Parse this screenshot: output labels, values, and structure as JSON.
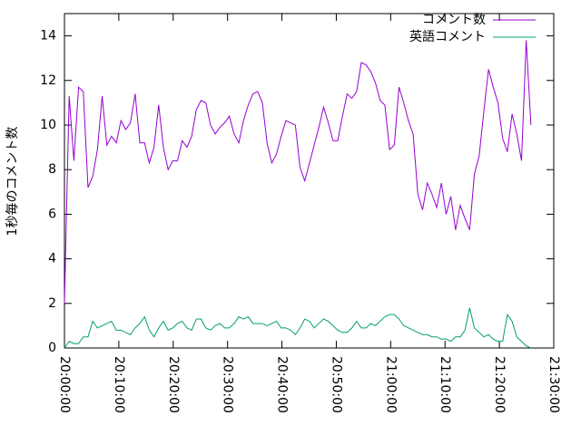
{
  "chart_data": {
    "type": "line",
    "y_label": "1秒毎のコメント数",
    "x": [
      "20:00:00",
      "20:00:52",
      "20:01:44",
      "20:02:36",
      "20:03:28",
      "20:04:20",
      "20:05:12",
      "20:06:04",
      "20:06:56",
      "20:07:48",
      "20:08:40",
      "20:09:32",
      "20:10:24",
      "20:11:16",
      "20:12:08",
      "20:13:00",
      "20:13:52",
      "20:14:44",
      "20:15:36",
      "20:16:28",
      "20:17:20",
      "20:18:12",
      "20:19:04",
      "20:19:56",
      "20:20:48",
      "20:21:40",
      "20:22:32",
      "20:23:24",
      "20:24:16",
      "20:25:08",
      "20:26:00",
      "20:26:52",
      "20:27:44",
      "20:28:36",
      "20:29:28",
      "20:30:20",
      "20:31:12",
      "20:32:04",
      "20:32:56",
      "20:33:48",
      "20:34:40",
      "20:35:32",
      "20:36:24",
      "20:37:16",
      "20:38:08",
      "20:39:00",
      "20:39:52",
      "20:40:44",
      "20:41:36",
      "20:42:28",
      "20:43:20",
      "20:44:12",
      "20:45:04",
      "20:45:56",
      "20:46:48",
      "20:47:40",
      "20:48:32",
      "20:49:24",
      "20:50:16",
      "20:51:08",
      "20:52:00",
      "20:52:52",
      "20:53:44",
      "20:54:36",
      "20:55:28",
      "20:56:20",
      "20:57:12",
      "20:58:04",
      "20:58:56",
      "20:59:48",
      "21:00:40",
      "21:01:32",
      "21:02:24",
      "21:03:16",
      "21:04:08",
      "21:05:00",
      "21:05:52",
      "21:06:44",
      "21:07:36",
      "21:08:28",
      "21:09:20",
      "21:10:12",
      "21:11:04",
      "21:11:56",
      "21:12:48",
      "21:13:40",
      "21:14:32",
      "21:15:24",
      "21:16:16",
      "21:17:08",
      "21:18:00",
      "21:18:52",
      "21:19:44",
      "21:20:36",
      "21:21:28",
      "21:22:20",
      "21:23:12",
      "21:24:04",
      "21:24:56",
      "21:25:48"
    ],
    "series": [
      {
        "name": "コメント数",
        "color": "#9400d3",
        "values": [
          2.0,
          11.3,
          8.4,
          11.7,
          11.5,
          7.2,
          7.7,
          8.9,
          11.3,
          9.1,
          9.5,
          9.2,
          10.2,
          9.8,
          10.1,
          11.4,
          9.2,
          9.2,
          8.3,
          9.0,
          10.9,
          9.0,
          8.0,
          8.4,
          8.4,
          9.3,
          9.0,
          9.5,
          10.7,
          11.1,
          11.0,
          10.0,
          9.6,
          9.9,
          10.1,
          10.4,
          9.6,
          9.2,
          10.2,
          10.9,
          11.4,
          11.5,
          11.0,
          9.2,
          8.3,
          8.7,
          9.5,
          10.2,
          10.1,
          10.0,
          8.1,
          7.5,
          8.3,
          9.1,
          9.9,
          10.8,
          10.1,
          9.3,
          9.3,
          10.4,
          11.4,
          11.2,
          11.5,
          12.8,
          12.7,
          12.4,
          11.9,
          11.1,
          10.9,
          8.9,
          9.1,
          11.7,
          11.0,
          10.2,
          9.6,
          6.9,
          6.2,
          7.4,
          6.9,
          6.3,
          7.4,
          6.0,
          6.8,
          5.3,
          6.4,
          5.8,
          5.3,
          7.8,
          8.6,
          10.6,
          12.5,
          11.7,
          11.0,
          9.4,
          8.8,
          10.5,
          9.6,
          8.4,
          13.8,
          10.0
        ]
      },
      {
        "name": "英語コメント",
        "color": "#009e73",
        "values": [
          0,
          0.3,
          0.2,
          0.2,
          0.5,
          0.5,
          1.2,
          0.9,
          1.0,
          1.1,
          1.2,
          0.8,
          0.8,
          0.7,
          0.6,
          0.9,
          1.1,
          1.4,
          0.8,
          0.5,
          0.9,
          1.2,
          0.8,
          0.9,
          1.1,
          1.2,
          0.9,
          0.8,
          1.3,
          1.3,
          0.9,
          0.8,
          1.0,
          1.1,
          0.9,
          0.9,
          1.1,
          1.4,
          1.3,
          1.4,
          1.1,
          1.1,
          1.1,
          1.0,
          1.1,
          1.2,
          0.9,
          0.9,
          0.8,
          0.6,
          0.9,
          1.3,
          1.2,
          0.9,
          1.1,
          1.3,
          1.2,
          1.0,
          0.8,
          0.7,
          0.7,
          0.9,
          1.2,
          0.9,
          0.9,
          1.1,
          1.0,
          1.2,
          1.4,
          1.5,
          1.5,
          1.3,
          1.0,
          0.9,
          0.8,
          0.7,
          0.6,
          0.6,
          0.5,
          0.5,
          0.4,
          0.4,
          0.3,
          0.5,
          0.5,
          0.8,
          1.8,
          0.9,
          0.7,
          0.5,
          0.6,
          0.4,
          0.3,
          0.3,
          1.5,
          1.2,
          0.5,
          0.3,
          0.1,
          0
        ]
      }
    ],
    "xlim": [
      "20:00:00",
      "21:30:00"
    ],
    "xticks": [
      "20:00:00",
      "20:10:00",
      "20:20:00",
      "20:30:00",
      "20:40:00",
      "20:50:00",
      "21:00:00",
      "21:10:00",
      "21:20:00",
      "21:30:00"
    ],
    "ylim": [
      0,
      15
    ],
    "yticks": [
      0,
      2,
      4,
      6,
      8,
      10,
      12,
      14
    ],
    "legend": "top-right"
  }
}
